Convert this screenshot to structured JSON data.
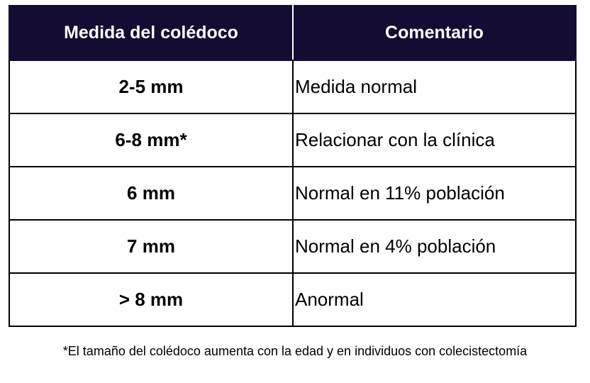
{
  "table": {
    "headers": [
      "Medida del colédoco",
      "Comentario"
    ],
    "rows": [
      [
        "2-5 mm",
        "Medida normal"
      ],
      [
        "6-8 mm*",
        "Relacionar con la clínica"
      ],
      [
        "6 mm",
        "Normal en 11% población"
      ],
      [
        "7 mm",
        "Normal en 4% población"
      ],
      [
        "> 8 mm",
        "Anormal"
      ]
    ]
  },
  "footnote": "*El tamaño del colédoco aumenta con la edad y en individuos con colecistectomía",
  "colors": {
    "header_bg": "#140c33"
  }
}
